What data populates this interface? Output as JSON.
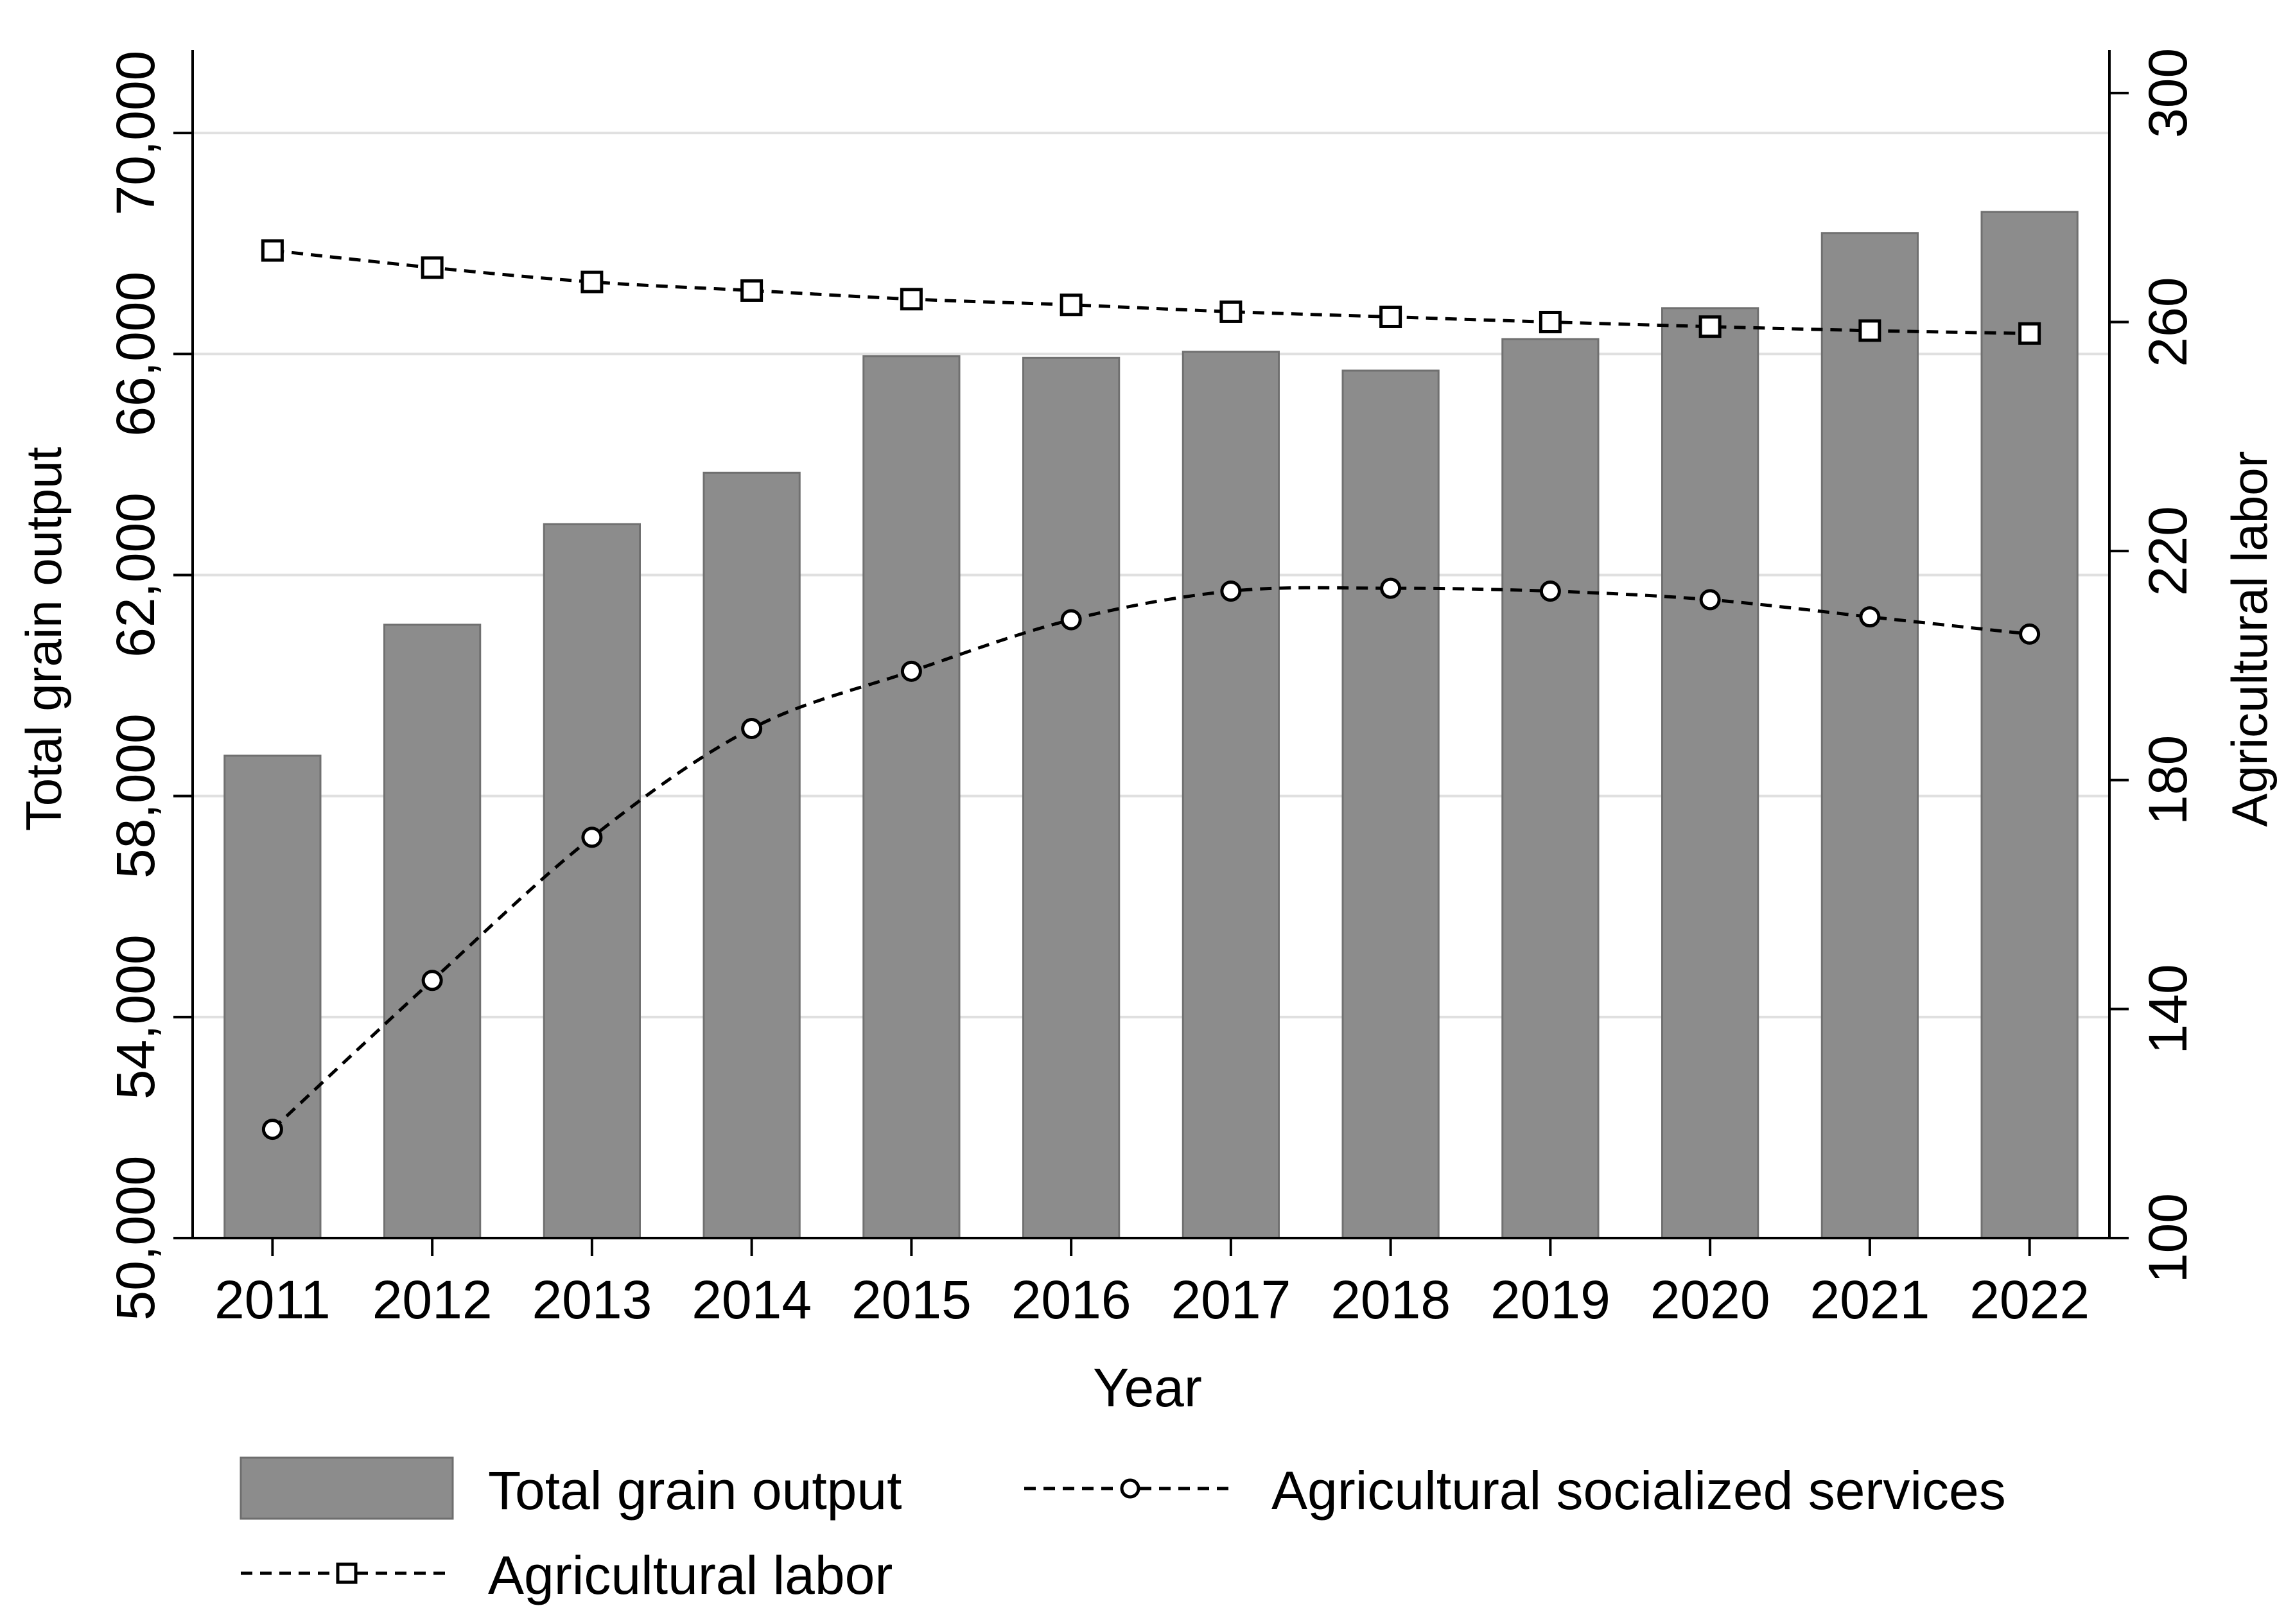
{
  "chart_data": {
    "type": "bar",
    "xlabel": "Year",
    "ylabel_left": "Total grain output",
    "ylabel_right": "Agricultural labor",
    "categories": [
      "2011",
      "2012",
      "2013",
      "2014",
      "2015",
      "2016",
      "2017",
      "2018",
      "2019",
      "2020",
      "2021",
      "2022"
    ],
    "left_axis": {
      "ylim": [
        50000,
        71500
      ],
      "ticks": [
        50000,
        54000,
        58000,
        62000,
        66000,
        70000
      ],
      "tick_labels": [
        "50,000",
        "54,000",
        "58,000",
        "62,000",
        "66,000",
        "70,000"
      ]
    },
    "right_axis": {
      "ylim": [
        100,
        307.5
      ],
      "ticks": [
        100,
        140,
        180,
        220,
        260,
        300
      ],
      "tick_labels": [
        "100",
        "140",
        "180",
        "220",
        "260",
        "300"
      ]
    },
    "grid": true,
    "series": [
      {
        "name": "Total grain output",
        "kind": "bar",
        "axis": "left",
        "color": "#8c8c8c",
        "values": [
          58730,
          61100,
          62920,
          63850,
          65960,
          65930,
          66040,
          65700,
          66270,
          66830,
          68190,
          68570
        ]
      },
      {
        "name": "Agricultural socialized services",
        "kind": "line",
        "axis": "right",
        "marker": "circle",
        "values": [
          119,
          145,
          170,
          189,
          199,
          208,
          213,
          213.5,
          213,
          211.5,
          208.5,
          205.5
        ]
      },
      {
        "name": "Agricultural labor",
        "kind": "line",
        "axis": "right",
        "marker": "square",
        "values": [
          272.5,
          269.5,
          267,
          265.5,
          264,
          263,
          261.8,
          260.9,
          260,
          259.2,
          258.5,
          258
        ]
      }
    ],
    "legend": {
      "placement": "bottom",
      "entries": [
        "Total grain output",
        "Agricultural socialized services",
        "Agricultural labor"
      ]
    }
  }
}
